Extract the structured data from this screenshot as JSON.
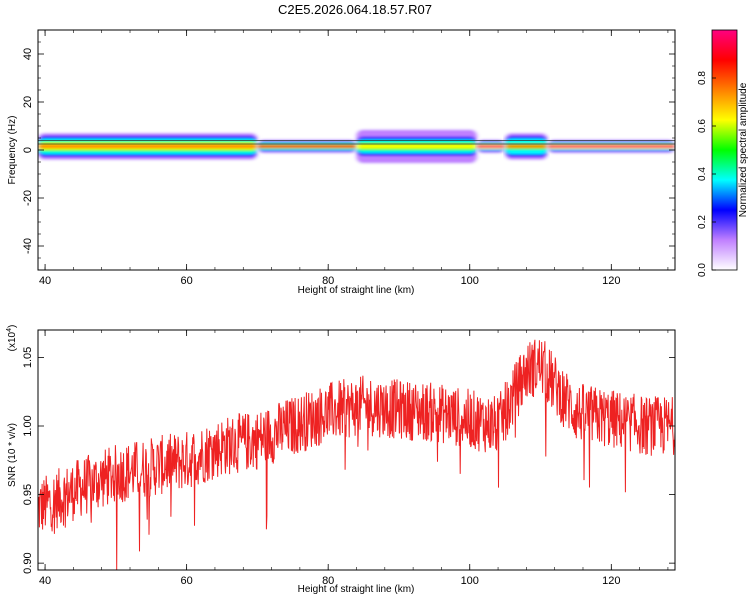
{
  "title": "C2E5.2026.064.18.57.R07",
  "chart_data": [
    {
      "type": "heatmap",
      "xlabel": "Height of straight line (km)",
      "ylabel": "Frequency (Hz)",
      "xlim": [
        39,
        129
      ],
      "ylim": [
        -50,
        50
      ],
      "xticks": [
        40,
        60,
        80,
        100,
        120
      ],
      "yticks": [
        -40,
        -20,
        0,
        20,
        40
      ],
      "band": {
        "center_hz": 1.5,
        "segments": [
          {
            "x": [
              39,
              70
            ],
            "intensity": 0.75,
            "halfwidth_hz": 4
          },
          {
            "x": [
              70,
              84
            ],
            "intensity": 0.9,
            "halfwidth_hz": 2
          },
          {
            "x": [
              84,
              101
            ],
            "intensity": 0.6,
            "halfwidth_hz": 5
          },
          {
            "x": [
              101,
              105
            ],
            "intensity": 0.95,
            "halfwidth_hz": 2
          },
          {
            "x": [
              105,
              111
            ],
            "intensity": 0.7,
            "halfwidth_hz": 4
          },
          {
            "x": [
              111,
              129
            ],
            "intensity": 0.95,
            "halfwidth_hz": 2
          }
        ]
      },
      "colorbar": {
        "label": "Normalized spectral amplitude",
        "range": [
          0,
          1
        ],
        "ticks": [
          "0.0",
          "0.2",
          "0.4",
          "0.6",
          "0.8"
        ],
        "colors": [
          "#ffffff",
          "#c080ff",
          "#0000ff",
          "#00ffff",
          "#00ff00",
          "#ffff00",
          "#ff8000",
          "#ff0000",
          "#ff0080"
        ]
      }
    },
    {
      "type": "line",
      "xlabel": "Height of straight line (km)",
      "ylabel": "SNR (10 * v/v)",
      "yscale_label": "(x10",
      "yscale_exp": "4",
      "xlim": [
        39,
        129
      ],
      "ylim": [
        0.895,
        1.07
      ],
      "xticks": [
        40,
        60,
        80,
        100,
        120
      ],
      "yticks": [
        "0.90",
        "0.95",
        "1.00",
        "1.05"
      ],
      "color": "#ee2222",
      "trend": {
        "x": [
          39,
          45,
          50,
          55,
          60,
          65,
          70,
          75,
          80,
          85,
          90,
          95,
          100,
          104,
          106,
          108,
          110,
          112,
          115,
          120,
          125,
          129
        ],
        "y": [
          0.94,
          0.955,
          0.965,
          0.97,
          0.975,
          0.985,
          0.99,
          1.0,
          1.01,
          1.015,
          1.012,
          1.01,
          1.005,
          1.0,
          1.02,
          1.04,
          1.045,
          1.03,
          1.01,
          1.005,
          1.0,
          1.0
        ]
      },
      "noise_amplitude": 0.022
    }
  ]
}
